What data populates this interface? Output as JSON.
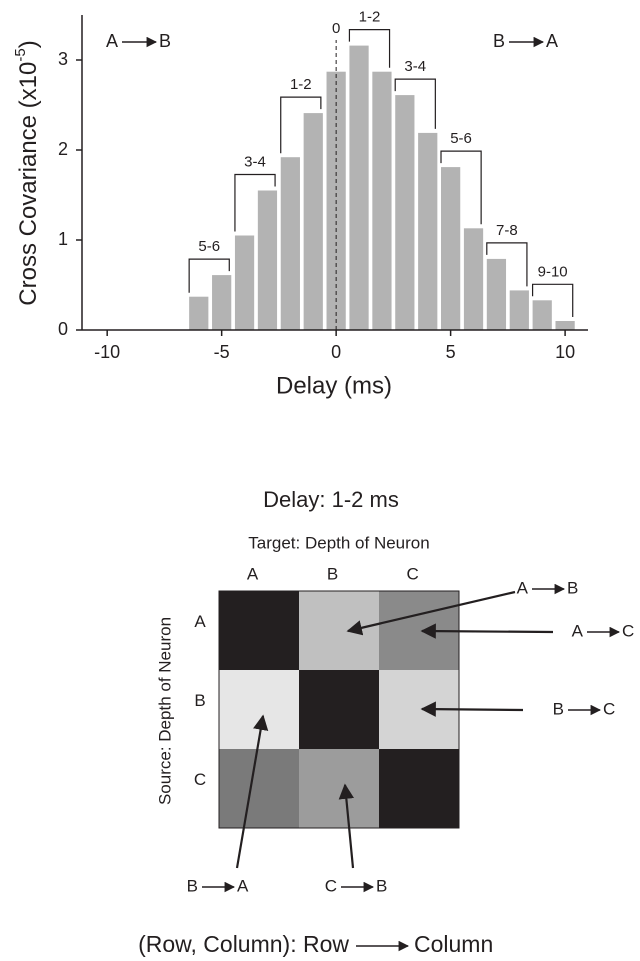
{
  "chart_data": [
    {
      "type": "bar",
      "x": [
        -6,
        -5,
        -4,
        -3,
        -2,
        -1,
        0,
        1,
        2,
        3,
        4,
        5,
        6,
        7,
        8,
        9,
        10
      ],
      "values": [
        0.37,
        0.61,
        1.05,
        1.55,
        1.92,
        2.41,
        2.87,
        3.16,
        2.87,
        2.61,
        2.19,
        1.81,
        1.13,
        0.79,
        0.44,
        0.33,
        0.1
      ],
      "color": "#b3b3b3",
      "xlim": [
        -11.1,
        11
      ],
      "xticks": [
        -10,
        -5,
        0,
        5,
        10
      ],
      "ylim": [
        0,
        3.5
      ],
      "yticks": [
        0,
        1,
        2,
        3
      ],
      "x_label": "Delay (ms)",
      "y_label": {
        "text": "Cross Covariance (x10",
        "exponent": "-5",
        "close": ")"
      },
      "zero_marker": 0,
      "direction_labels": [
        {
          "from": "A",
          "to": "B"
        },
        {
          "from": "B",
          "to": "A"
        }
      ],
      "annotations": [
        {
          "label": "5-6",
          "range": [
            -6,
            -5
          ]
        },
        {
          "label": "3-4",
          "range": [
            -4,
            -3
          ]
        },
        {
          "label": "1-2",
          "range": [
            -2,
            -1
          ]
        },
        {
          "label": "1-2",
          "range": [
            1,
            2
          ]
        },
        {
          "label": "3-4",
          "range": [
            3,
            4
          ]
        },
        {
          "label": "5-6",
          "range": [
            5,
            6
          ]
        },
        {
          "label": "7-8",
          "range": [
            7,
            8
          ]
        },
        {
          "label": "9-10",
          "range": [
            9,
            10
          ]
        }
      ]
    },
    {
      "type": "heatmap",
      "title": "Delay: 1-2 ms",
      "x_label": "Target: Depth of Neuron",
      "y_label": "Source: Depth of Neuron",
      "x_categories": [
        "A",
        "B",
        "C"
      ],
      "y_categories": [
        "A",
        "B",
        "C"
      ],
      "colors": [
        [
          "#231f20",
          "#c0c0c0",
          "#8a8a8a"
        ],
        [
          "#e6e6e6",
          "#231f20",
          "#d4d4d4"
        ],
        [
          "#7a7a7a",
          "#9c9c9c",
          "#231f20"
        ]
      ],
      "arrows": [
        {
          "from": "A",
          "to": "B"
        },
        {
          "from": "A",
          "to": "C"
        },
        {
          "from": "B",
          "to": "C"
        },
        {
          "from": "B",
          "to": "A"
        },
        {
          "from": "C",
          "to": "B"
        }
      ],
      "legend": {
        "pair": "(Row, Column): Row",
        "to": "Column"
      }
    }
  ]
}
